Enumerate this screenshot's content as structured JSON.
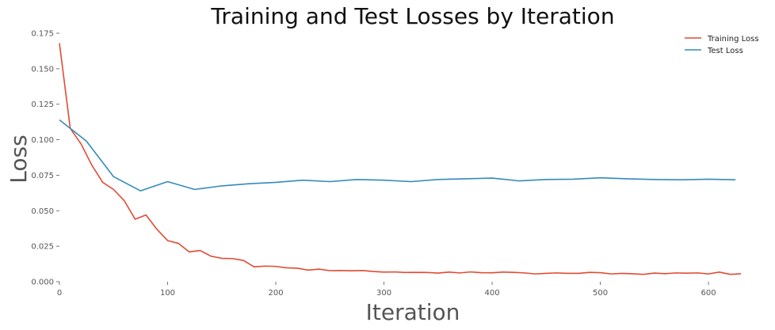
{
  "chart_data": {
    "type": "line",
    "title": "Training and Test Losses by Iteration",
    "xlabel": "Iteration",
    "ylabel": "Loss",
    "xlim": [
      0,
      630
    ],
    "ylim": [
      0,
      0.175
    ],
    "xticks": [
      0,
      100,
      200,
      300,
      400,
      500,
      600
    ],
    "yticks": [
      0.0,
      0.025,
      0.05,
      0.075,
      0.1,
      0.125,
      0.15,
      0.175
    ],
    "ytick_labels": [
      "0.000",
      "0.025",
      "0.050",
      "0.075",
      "0.100",
      "0.125",
      "0.150",
      "0.175"
    ],
    "grid": false,
    "legend": "top-right",
    "series": [
      {
        "name": "Training Loss",
        "color": "#e24a33",
        "x": [
          0,
          10,
          20,
          30,
          40,
          50,
          60,
          70,
          80,
          90,
          100,
          110,
          120,
          130,
          140,
          150,
          160,
          170,
          180,
          190,
          200,
          210,
          220,
          230,
          240,
          250,
          260,
          270,
          280,
          290,
          300,
          310,
          320,
          330,
          340,
          350,
          360,
          370,
          380,
          390,
          400,
          410,
          420,
          430,
          440,
          450,
          460,
          470,
          480,
          490,
          500,
          510,
          520,
          530,
          540,
          550,
          560,
          570,
          580,
          590,
          600,
          610,
          620,
          630
        ],
        "y": [
          0.168,
          0.108,
          0.097,
          0.082,
          0.07,
          0.065,
          0.057,
          0.044,
          0.047,
          0.037,
          0.029,
          0.027,
          0.021,
          0.022,
          0.018,
          0.0165,
          0.0163,
          0.015,
          0.0105,
          0.011,
          0.0108,
          0.0098,
          0.0095,
          0.0082,
          0.0089,
          0.0078,
          0.0079,
          0.0077,
          0.0079,
          0.0072,
          0.0068,
          0.0069,
          0.0065,
          0.0066,
          0.0065,
          0.0061,
          0.0068,
          0.0062,
          0.0069,
          0.0064,
          0.0063,
          0.0068,
          0.0066,
          0.0062,
          0.0055,
          0.0059,
          0.0062,
          0.0059,
          0.0059,
          0.0066,
          0.0064,
          0.0055,
          0.0059,
          0.0056,
          0.0052,
          0.0061,
          0.0057,
          0.0062,
          0.006,
          0.0062,
          0.0055,
          0.0068,
          0.0052,
          0.0056
        ]
      },
      {
        "name": "Test Loss",
        "color": "#348abd",
        "x": [
          0,
          25,
          50,
          75,
          100,
          125,
          150,
          175,
          200,
          225,
          250,
          275,
          300,
          325,
          350,
          375,
          400,
          425,
          450,
          475,
          500,
          525,
          550,
          575,
          600,
          625
        ],
        "y": [
          0.114,
          0.099,
          0.074,
          0.064,
          0.0705,
          0.065,
          0.0675,
          0.069,
          0.07,
          0.0715,
          0.0705,
          0.072,
          0.0715,
          0.0705,
          0.072,
          0.0725,
          0.073,
          0.071,
          0.072,
          0.0722,
          0.0732,
          0.0725,
          0.072,
          0.0718,
          0.0722,
          0.0718
        ]
      }
    ]
  }
}
